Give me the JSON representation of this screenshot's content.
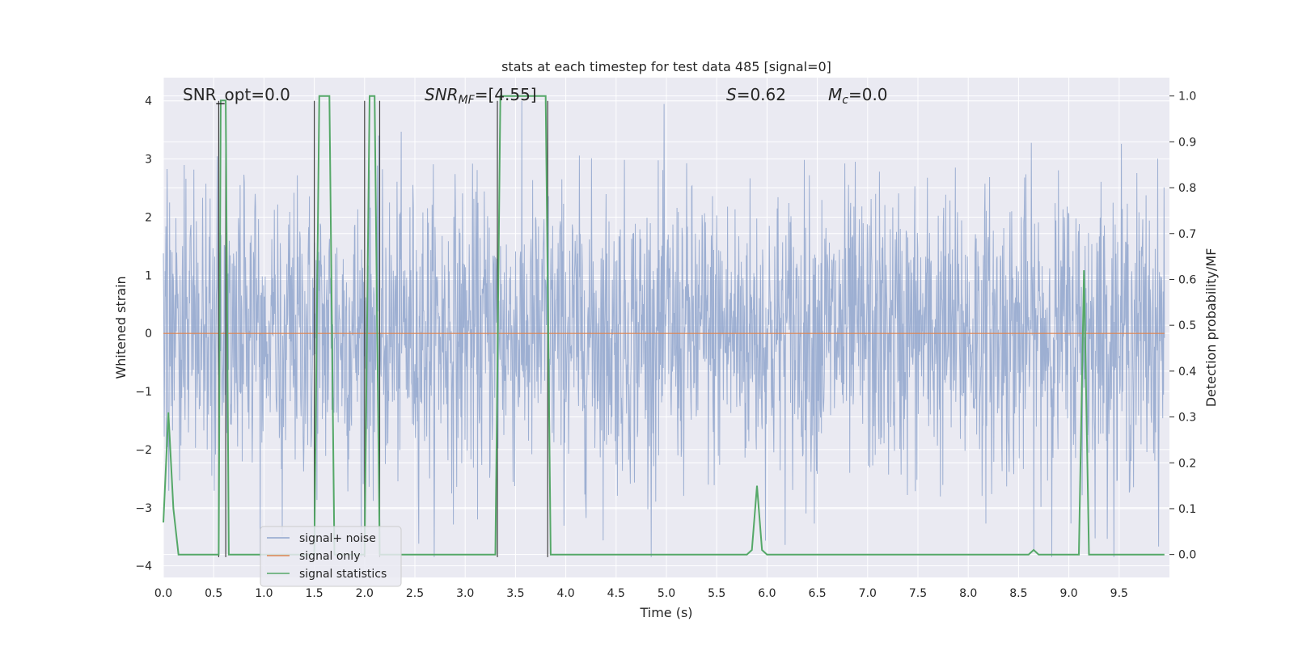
{
  "chart_data": {
    "type": "line",
    "title": "stats at each timestep for test data 485 [signal=0]",
    "xlabel": "Time (s)",
    "ylabel": "Whitened strain",
    "ylabel_right": "Detection probability/MF",
    "xlim": [
      0.0,
      10.0
    ],
    "ylim": [
      -4.2,
      4.4
    ],
    "ylim_right": [
      -0.05,
      1.04
    ],
    "x_ticks": [
      "0.0",
      "0.5",
      "1.0",
      "1.5",
      "2.0",
      "2.5",
      "3.0",
      "3.5",
      "4.0",
      "4.5",
      "5.0",
      "5.5",
      "6.0",
      "6.5",
      "7.0",
      "7.5",
      "8.0",
      "8.5",
      "9.0",
      "9.5"
    ],
    "y_ticks": [
      "4",
      "3",
      "2",
      "1",
      "0",
      "−1",
      "−2",
      "−3",
      "−4"
    ],
    "y_ticks_right": [
      "1.0",
      "0.9",
      "0.8",
      "0.7",
      "0.6",
      "0.5",
      "0.4",
      "0.3",
      "0.2",
      "0.1",
      "0.0"
    ],
    "grid": true,
    "legend_position": "lower-left",
    "annotations": {
      "snr_opt": "SNR_opt=0.0",
      "snr_mf_base": "SNR",
      "snr_mf_sub": "MF",
      "snr_mf_rest": "=[4.55]",
      "s_label": "S",
      "s_value": "=0.62",
      "mc_label": "M",
      "mc_sub": "c",
      "mc_value": "=0.0"
    },
    "series": [
      {
        "name": "signal+ noise",
        "color": "#8fa4cc",
        "kind": "noise",
        "amplitude_envelope": [
          1.6,
          3.5
        ]
      },
      {
        "name": "signal only",
        "color": "#dd8452",
        "kind": "flat",
        "y": 0.0
      },
      {
        "name": "signal statistics",
        "color": "#55a868",
        "axis": "right",
        "x": [
          0.0,
          0.05,
          0.1,
          0.15,
          0.2,
          0.25,
          0.55,
          0.57,
          0.6,
          0.62,
          0.65,
          0.7,
          0.75,
          1.0,
          1.5,
          1.55,
          1.6,
          1.65,
          1.7,
          1.75,
          2.0,
          2.05,
          2.1,
          2.15,
          2.2,
          2.3,
          3.3,
          3.35,
          3.4,
          3.8,
          3.85,
          3.9,
          3.95,
          5.8,
          5.85,
          5.9,
          5.95,
          6.0,
          8.6,
          8.65,
          8.7,
          8.75,
          9.1,
          9.15,
          9.2,
          9.25,
          9.3,
          9.95
        ],
        "y": [
          0.07,
          0.31,
          0.1,
          0.0,
          0.0,
          0.0,
          0.0,
          0.99,
          0.99,
          0.99,
          0.0,
          0.0,
          0.0,
          0.0,
          0.0,
          1.0,
          1.0,
          1.0,
          0.0,
          0.0,
          0.0,
          1.0,
          1.0,
          0.0,
          0.0,
          0.0,
          0.0,
          1.0,
          1.0,
          1.0,
          0.0,
          0.0,
          0.0,
          0.0,
          0.01,
          0.15,
          0.01,
          0.0,
          0.0,
          0.01,
          0.0,
          0.0,
          0.0,
          0.62,
          0.0,
          0.0,
          0.0,
          0.0
        ]
      }
    ],
    "threshold_markers": {
      "color": "#404040",
      "x": [
        0.55,
        0.62,
        1.5,
        2.0,
        2.15,
        3.32,
        3.82
      ],
      "y_top": 4.0,
      "y_bottom": -3.85
    }
  }
}
